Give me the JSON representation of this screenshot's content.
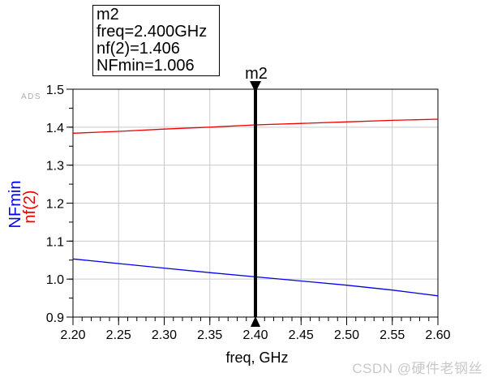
{
  "logo": "ADS",
  "watermark": "CSDN @硬件老钢丝",
  "marker_box": {
    "title": "m2",
    "rows": [
      "freq=2.400GHz",
      "nf(2)=1.406",
      "NFmin=1.006"
    ]
  },
  "chart_data": {
    "type": "line",
    "title": "",
    "xlabel": "freq, GHz",
    "ylabels": [
      {
        "text": "NFmin",
        "color": "#0000ee"
      },
      {
        "text": "nf(2)",
        "color": "#ee0000"
      }
    ],
    "xlim": [
      2.2,
      2.6
    ],
    "ylim": [
      0.9,
      1.5
    ],
    "grid": true,
    "grid_color": "#c9c9c9",
    "axis_color": "#000000",
    "x_tick_values": [
      2.2,
      2.25,
      2.3,
      2.35,
      2.4,
      2.45,
      2.5,
      2.55,
      2.6
    ],
    "x_tick_labels": [
      "2.20",
      "2.25",
      "2.30",
      "2.35",
      "2.40",
      "2.45",
      "2.50",
      "2.55",
      "2.60"
    ],
    "x_minor_step": 0.01,
    "y_tick_values": [
      0.9,
      1.0,
      1.1,
      1.2,
      1.3,
      1.4,
      1.5
    ],
    "y_tick_labels": [
      "0.9",
      "1.0",
      "1.1",
      "1.2",
      "1.3",
      "1.4",
      "1.5"
    ],
    "y_minor_step": 0.05,
    "x": [
      2.2,
      2.25,
      2.3,
      2.35,
      2.4,
      2.45,
      2.5,
      2.55,
      2.6
    ],
    "series": [
      {
        "name": "nf(2)",
        "color": "#ee0000",
        "values": [
          1.384,
          1.389,
          1.395,
          1.4,
          1.406,
          1.41,
          1.414,
          1.418,
          1.421
        ]
      },
      {
        "name": "NFmin",
        "color": "#0000ee",
        "values": [
          1.053,
          1.041,
          1.029,
          1.017,
          1.006,
          0.995,
          0.984,
          0.971,
          0.956
        ]
      }
    ],
    "marker": {
      "label": "m2",
      "x": 2.4,
      "values": {
        "nf(2)": 1.406,
        "NFmin": 1.006
      },
      "color": "#000000"
    }
  }
}
